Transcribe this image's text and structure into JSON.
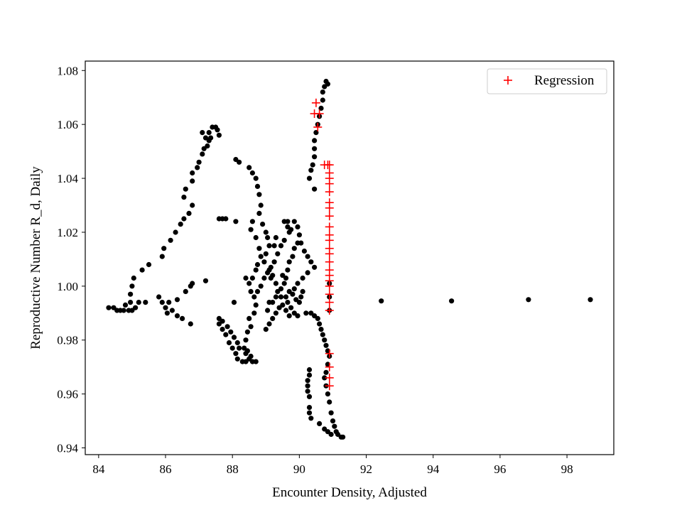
{
  "chart_data": {
    "type": "scatter",
    "title": "",
    "xlabel": "Encounter Density, Adjusted",
    "ylabel": "Reproductive Number R_d, Daily",
    "xlim": [
      83.6,
      99.4
    ],
    "ylim": [
      0.9375,
      1.0835
    ],
    "xticks": [
      84,
      86,
      88,
      90,
      92,
      94,
      96,
      98
    ],
    "yticks": [
      0.94,
      0.96,
      0.98,
      1.0,
      1.02,
      1.04,
      1.06,
      1.08
    ],
    "xtick_labels": [
      "84",
      "86",
      "88",
      "90",
      "92",
      "94",
      "96",
      "98"
    ],
    "ytick_labels": [
      "0.94",
      "0.96",
      "0.98",
      "1.00",
      "1.02",
      "1.04",
      "1.06",
      "1.08"
    ],
    "grid": false,
    "legend": {
      "position": "top-right",
      "entries": [
        {
          "label": "Regression",
          "marker": "plus",
          "color": "#ff0000"
        }
      ]
    },
    "series": [
      {
        "marker": "circle",
        "color": "#000000",
        "points": [
          [
            84.3,
            0.992
          ],
          [
            84.45,
            0.992
          ],
          [
            84.55,
            0.991
          ],
          [
            84.65,
            0.991
          ],
          [
            84.75,
            0.991
          ],
          [
            84.8,
            0.993
          ],
          [
            84.9,
            0.991
          ],
          [
            85.0,
            0.991
          ],
          [
            85.1,
            0.992
          ],
          [
            85.2,
            0.994
          ],
          [
            85.4,
            0.994
          ],
          [
            85.8,
            0.996
          ],
          [
            85.9,
            0.994
          ],
          [
            86.0,
            0.992
          ],
          [
            86.05,
            0.99
          ],
          [
            86.2,
            0.991
          ],
          [
            86.35,
            0.989
          ],
          [
            86.5,
            0.988
          ],
          [
            86.75,
            0.986
          ],
          [
            86.1,
            0.994
          ],
          [
            86.35,
            0.995
          ],
          [
            86.6,
            0.998
          ],
          [
            86.75,
            1.0
          ],
          [
            86.8,
            1.001
          ],
          [
            87.2,
            1.002
          ],
          [
            84.95,
            0.994
          ],
          [
            84.95,
            0.997
          ],
          [
            85.0,
            1.0
          ],
          [
            85.05,
            1.003
          ],
          [
            85.3,
            1.006
          ],
          [
            85.5,
            1.008
          ],
          [
            85.9,
            1.011
          ],
          [
            85.95,
            1.014
          ],
          [
            86.15,
            1.017
          ],
          [
            86.3,
            1.02
          ],
          [
            86.45,
            1.023
          ],
          [
            86.55,
            1.025
          ],
          [
            86.7,
            1.027
          ],
          [
            86.8,
            1.03
          ],
          [
            86.55,
            1.033
          ],
          [
            86.6,
            1.036
          ],
          [
            86.8,
            1.039
          ],
          [
            86.8,
            1.042
          ],
          [
            86.95,
            1.044
          ],
          [
            87.0,
            1.046
          ],
          [
            87.1,
            1.049
          ],
          [
            87.15,
            1.051
          ],
          [
            87.25,
            1.052
          ],
          [
            87.3,
            1.054
          ],
          [
            87.35,
            1.055
          ],
          [
            87.1,
            1.057
          ],
          [
            87.2,
            1.055
          ],
          [
            87.3,
            1.057
          ],
          [
            87.4,
            1.059
          ],
          [
            87.5,
            1.059
          ],
          [
            87.55,
            1.058
          ],
          [
            87.6,
            1.056
          ],
          [
            87.6,
            1.025
          ],
          [
            87.7,
            1.025
          ],
          [
            87.8,
            1.025
          ],
          [
            88.1,
            1.024
          ],
          [
            88.1,
            1.047
          ],
          [
            88.2,
            1.046
          ],
          [
            88.5,
            1.044
          ],
          [
            88.6,
            1.042
          ],
          [
            88.7,
            1.04
          ],
          [
            88.75,
            1.037
          ],
          [
            88.8,
            1.034
          ],
          [
            88.85,
            1.03
          ],
          [
            88.8,
            1.027
          ],
          [
            88.6,
            1.024
          ],
          [
            88.55,
            1.021
          ],
          [
            88.7,
            1.018
          ],
          [
            88.8,
            1.014
          ],
          [
            88.85,
            1.011
          ],
          [
            88.75,
            1.008
          ],
          [
            88.7,
            1.006
          ],
          [
            88.6,
            1.003
          ],
          [
            88.5,
            1.001
          ],
          [
            88.55,
            0.998
          ],
          [
            88.65,
            0.996
          ],
          [
            88.7,
            0.993
          ],
          [
            88.65,
            0.99
          ],
          [
            88.5,
            0.988
          ],
          [
            88.55,
            0.985
          ],
          [
            88.45,
            0.983
          ],
          [
            88.4,
            0.98
          ],
          [
            88.35,
            0.977
          ],
          [
            88.4,
            0.975
          ],
          [
            88.5,
            0.973
          ],
          [
            88.6,
            0.972
          ],
          [
            88.7,
            0.972
          ],
          [
            88.05,
            0.994
          ],
          [
            88.4,
            1.003
          ],
          [
            87.6,
            0.986
          ],
          [
            87.7,
            0.984
          ],
          [
            87.8,
            0.982
          ],
          [
            87.9,
            0.979
          ],
          [
            88.0,
            0.977
          ],
          [
            88.1,
            0.975
          ],
          [
            88.15,
            0.973
          ],
          [
            88.3,
            0.972
          ],
          [
            88.4,
            0.972
          ],
          [
            88.55,
            0.974
          ],
          [
            88.45,
            0.976
          ],
          [
            88.2,
            0.977
          ],
          [
            88.15,
            0.979
          ],
          [
            88.05,
            0.981
          ],
          [
            87.95,
            0.983
          ],
          [
            87.85,
            0.985
          ],
          [
            87.7,
            0.987
          ],
          [
            87.6,
            0.988
          ],
          [
            88.9,
            1.023
          ],
          [
            89.0,
            1.02
          ],
          [
            89.05,
            1.018
          ],
          [
            89.1,
            1.015
          ],
          [
            89.0,
            1.012
          ],
          [
            88.95,
            1.009
          ],
          [
            89.1,
            1.006
          ],
          [
            89.2,
            1.004
          ],
          [
            89.3,
            1.001
          ],
          [
            89.35,
            0.998
          ],
          [
            89.45,
            0.996
          ],
          [
            89.5,
            0.993
          ],
          [
            89.6,
            0.991
          ],
          [
            89.7,
            0.989
          ],
          [
            89.55,
            1.024
          ],
          [
            89.65,
            1.022
          ],
          [
            89.7,
            1.02
          ],
          [
            89.55,
            1.017
          ],
          [
            89.45,
            1.015
          ],
          [
            89.35,
            1.012
          ],
          [
            89.25,
            1.009
          ],
          [
            89.15,
            1.007
          ],
          [
            89.05,
            1.005
          ],
          [
            88.95,
            1.003
          ],
          [
            88.85,
            1.0
          ],
          [
            88.75,
            0.998
          ],
          [
            89.3,
            1.018
          ],
          [
            89.25,
            1.015
          ],
          [
            89.5,
            1.004
          ],
          [
            89.6,
            1.003
          ],
          [
            89.65,
            1.006
          ],
          [
            89.7,
            1.009
          ],
          [
            89.8,
            1.011
          ],
          [
            89.85,
            1.014
          ],
          [
            89.95,
            1.016
          ],
          [
            89.75,
            1.021
          ],
          [
            89.65,
            1.024
          ],
          [
            89.85,
            1.024
          ],
          [
            89.95,
            1.022
          ],
          [
            90.0,
            1.019
          ],
          [
            90.05,
            1.016
          ],
          [
            90.15,
            1.013
          ],
          [
            90.25,
            1.011
          ],
          [
            90.35,
            1.009
          ],
          [
            90.45,
            1.007
          ],
          [
            90.25,
            1.005
          ],
          [
            90.1,
            1.003
          ],
          [
            89.95,
            1.001
          ],
          [
            89.85,
            0.999
          ],
          [
            89.7,
            0.998
          ],
          [
            89.6,
            0.996
          ],
          [
            89.65,
            0.994
          ],
          [
            89.75,
            0.992
          ],
          [
            89.85,
            0.99
          ],
          [
            89.95,
            0.989
          ],
          [
            89.8,
            0.997
          ],
          [
            89.9,
            0.995
          ],
          [
            90.0,
            0.994
          ],
          [
            90.05,
            0.996
          ],
          [
            90.1,
            0.998
          ],
          [
            89.0,
            0.984
          ],
          [
            89.1,
            0.986
          ],
          [
            89.2,
            0.988
          ],
          [
            89.3,
            0.99
          ],
          [
            89.4,
            0.992
          ],
          [
            89.2,
            0.994
          ],
          [
            89.3,
            0.996
          ],
          [
            89.1,
            0.994
          ],
          [
            89.05,
            0.991
          ],
          [
            89.55,
            1.001
          ],
          [
            89.45,
            0.999
          ],
          [
            89.15,
            1.003
          ],
          [
            90.2,
            0.99
          ],
          [
            90.35,
            0.99
          ],
          [
            90.45,
            0.989
          ],
          [
            90.55,
            0.988
          ],
          [
            90.6,
            0.986
          ],
          [
            90.65,
            0.984
          ],
          [
            90.7,
            0.982
          ],
          [
            90.75,
            0.98
          ],
          [
            90.8,
            0.978
          ],
          [
            90.85,
            0.976
          ],
          [
            90.9,
            0.974
          ],
          [
            90.85,
            0.971
          ],
          [
            90.8,
            0.968
          ],
          [
            90.75,
            0.966
          ],
          [
            90.8,
            0.963
          ],
          [
            90.85,
            0.96
          ],
          [
            90.9,
            0.957
          ],
          [
            90.95,
            0.953
          ],
          [
            91.0,
            0.95
          ],
          [
            91.05,
            0.948
          ],
          [
            91.1,
            0.946
          ],
          [
            91.15,
            0.945
          ],
          [
            91.25,
            0.944
          ],
          [
            91.3,
            0.944
          ],
          [
            90.95,
            0.945
          ],
          [
            90.85,
            0.946
          ],
          [
            90.75,
            0.947
          ],
          [
            90.6,
            0.949
          ],
          [
            90.35,
            0.951
          ],
          [
            90.3,
            0.953
          ],
          [
            90.3,
            0.955
          ],
          [
            90.25,
            0.961
          ],
          [
            90.3,
            0.959
          ],
          [
            90.25,
            0.963
          ],
          [
            90.25,
            0.965
          ],
          [
            90.3,
            0.967
          ],
          [
            90.3,
            0.969
          ],
          [
            90.3,
            1.04
          ],
          [
            90.35,
            1.043
          ],
          [
            90.4,
            1.045
          ],
          [
            90.45,
            1.048
          ],
          [
            90.45,
            1.051
          ],
          [
            90.45,
            1.054
          ],
          [
            90.5,
            1.057
          ],
          [
            90.55,
            1.06
          ],
          [
            90.6,
            1.063
          ],
          [
            90.65,
            1.066
          ],
          [
            90.7,
            1.069
          ],
          [
            90.7,
            1.072
          ],
          [
            90.75,
            1.074
          ],
          [
            90.8,
            1.076
          ],
          [
            90.85,
            1.075
          ],
          [
            90.45,
            1.036
          ],
          [
            92.45,
            0.9945
          ],
          [
            94.55,
            0.9945
          ],
          [
            96.85,
            0.995
          ],
          [
            98.7,
            0.995
          ],
          [
            90.9,
            1.001
          ],
          [
            90.9,
            0.996
          ],
          [
            90.9,
            0.991
          ]
        ]
      },
      {
        "name": "Regression",
        "marker": "plus",
        "color": "#ff0000",
        "points": [
          [
            90.45,
            1.064
          ],
          [
            90.5,
            1.068
          ],
          [
            90.55,
            1.059
          ],
          [
            90.6,
            1.064
          ],
          [
            90.75,
            1.045
          ],
          [
            90.85,
            1.045
          ],
          [
            90.9,
            1.045
          ],
          [
            90.9,
            1.042
          ],
          [
            90.9,
            1.04
          ],
          [
            90.9,
            1.038
          ],
          [
            90.9,
            1.035
          ],
          [
            90.9,
            1.031
          ],
          [
            90.9,
            1.029
          ],
          [
            90.9,
            1.026
          ],
          [
            90.9,
            1.022
          ],
          [
            90.9,
            1.019
          ],
          [
            90.9,
            1.017
          ],
          [
            90.9,
            1.014
          ],
          [
            90.9,
            1.012
          ],
          [
            90.9,
            1.009
          ],
          [
            90.9,
            1.006
          ],
          [
            90.9,
            1.004
          ],
          [
            90.9,
            1.002
          ],
          [
            90.9,
            1.0
          ],
          [
            90.9,
            0.997
          ],
          [
            90.9,
            0.994
          ],
          [
            90.9,
            0.991
          ],
          [
            90.9,
            0.975
          ],
          [
            90.9,
            0.97
          ],
          [
            90.9,
            0.966
          ],
          [
            90.9,
            0.963
          ]
        ]
      }
    ]
  }
}
